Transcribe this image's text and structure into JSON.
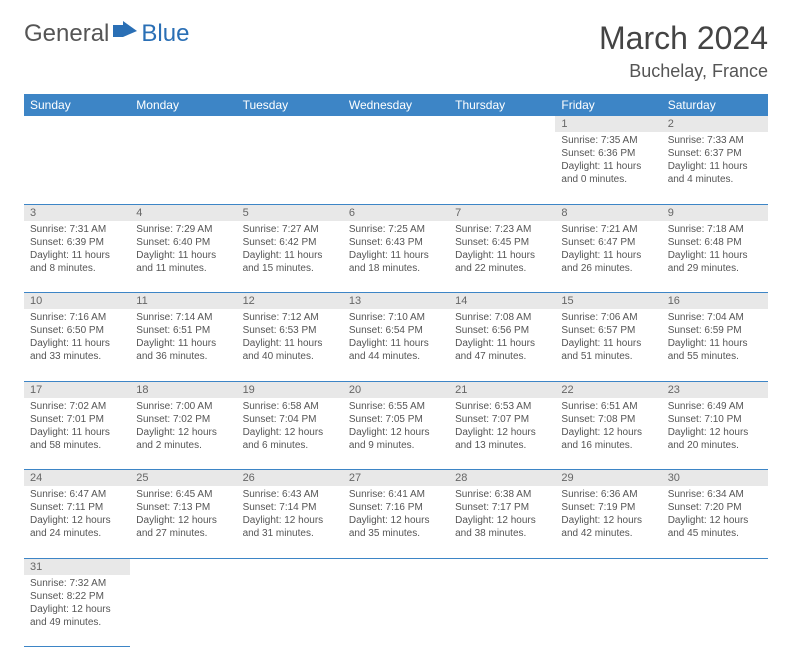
{
  "logo": {
    "part1": "General",
    "part2": "Blue"
  },
  "title": "March 2024",
  "location": "Buchelay, France",
  "colors": {
    "header_bg": "#3d85c6",
    "header_text": "#ffffff",
    "daynum_bg": "#e8e8e8",
    "border": "#3d85c6",
    "text": "#555555",
    "logo_blue": "#2a6fb5"
  },
  "day_headers": [
    "Sunday",
    "Monday",
    "Tuesday",
    "Wednesday",
    "Thursday",
    "Friday",
    "Saturday"
  ],
  "weeks": [
    [
      null,
      null,
      null,
      null,
      null,
      {
        "n": "1",
        "sr": "7:35 AM",
        "ss": "6:36 PM",
        "dl": "11 hours and 0 minutes."
      },
      {
        "n": "2",
        "sr": "7:33 AM",
        "ss": "6:37 PM",
        "dl": "11 hours and 4 minutes."
      }
    ],
    [
      {
        "n": "3",
        "sr": "7:31 AM",
        "ss": "6:39 PM",
        "dl": "11 hours and 8 minutes."
      },
      {
        "n": "4",
        "sr": "7:29 AM",
        "ss": "6:40 PM",
        "dl": "11 hours and 11 minutes."
      },
      {
        "n": "5",
        "sr": "7:27 AM",
        "ss": "6:42 PM",
        "dl": "11 hours and 15 minutes."
      },
      {
        "n": "6",
        "sr": "7:25 AM",
        "ss": "6:43 PM",
        "dl": "11 hours and 18 minutes."
      },
      {
        "n": "7",
        "sr": "7:23 AM",
        "ss": "6:45 PM",
        "dl": "11 hours and 22 minutes."
      },
      {
        "n": "8",
        "sr": "7:21 AM",
        "ss": "6:47 PM",
        "dl": "11 hours and 26 minutes."
      },
      {
        "n": "9",
        "sr": "7:18 AM",
        "ss": "6:48 PM",
        "dl": "11 hours and 29 minutes."
      }
    ],
    [
      {
        "n": "10",
        "sr": "7:16 AM",
        "ss": "6:50 PM",
        "dl": "11 hours and 33 minutes."
      },
      {
        "n": "11",
        "sr": "7:14 AM",
        "ss": "6:51 PM",
        "dl": "11 hours and 36 minutes."
      },
      {
        "n": "12",
        "sr": "7:12 AM",
        "ss": "6:53 PM",
        "dl": "11 hours and 40 minutes."
      },
      {
        "n": "13",
        "sr": "7:10 AM",
        "ss": "6:54 PM",
        "dl": "11 hours and 44 minutes."
      },
      {
        "n": "14",
        "sr": "7:08 AM",
        "ss": "6:56 PM",
        "dl": "11 hours and 47 minutes."
      },
      {
        "n": "15",
        "sr": "7:06 AM",
        "ss": "6:57 PM",
        "dl": "11 hours and 51 minutes."
      },
      {
        "n": "16",
        "sr": "7:04 AM",
        "ss": "6:59 PM",
        "dl": "11 hours and 55 minutes."
      }
    ],
    [
      {
        "n": "17",
        "sr": "7:02 AM",
        "ss": "7:01 PM",
        "dl": "11 hours and 58 minutes."
      },
      {
        "n": "18",
        "sr": "7:00 AM",
        "ss": "7:02 PM",
        "dl": "12 hours and 2 minutes."
      },
      {
        "n": "19",
        "sr": "6:58 AM",
        "ss": "7:04 PM",
        "dl": "12 hours and 6 minutes."
      },
      {
        "n": "20",
        "sr": "6:55 AM",
        "ss": "7:05 PM",
        "dl": "12 hours and 9 minutes."
      },
      {
        "n": "21",
        "sr": "6:53 AM",
        "ss": "7:07 PM",
        "dl": "12 hours and 13 minutes."
      },
      {
        "n": "22",
        "sr": "6:51 AM",
        "ss": "7:08 PM",
        "dl": "12 hours and 16 minutes."
      },
      {
        "n": "23",
        "sr": "6:49 AM",
        "ss": "7:10 PM",
        "dl": "12 hours and 20 minutes."
      }
    ],
    [
      {
        "n": "24",
        "sr": "6:47 AM",
        "ss": "7:11 PM",
        "dl": "12 hours and 24 minutes."
      },
      {
        "n": "25",
        "sr": "6:45 AM",
        "ss": "7:13 PM",
        "dl": "12 hours and 27 minutes."
      },
      {
        "n": "26",
        "sr": "6:43 AM",
        "ss": "7:14 PM",
        "dl": "12 hours and 31 minutes."
      },
      {
        "n": "27",
        "sr": "6:41 AM",
        "ss": "7:16 PM",
        "dl": "12 hours and 35 minutes."
      },
      {
        "n": "28",
        "sr": "6:38 AM",
        "ss": "7:17 PM",
        "dl": "12 hours and 38 minutes."
      },
      {
        "n": "29",
        "sr": "6:36 AM",
        "ss": "7:19 PM",
        "dl": "12 hours and 42 minutes."
      },
      {
        "n": "30",
        "sr": "6:34 AM",
        "ss": "7:20 PM",
        "dl": "12 hours and 45 minutes."
      }
    ],
    [
      {
        "n": "31",
        "sr": "7:32 AM",
        "ss": "8:22 PM",
        "dl": "12 hours and 49 minutes."
      },
      null,
      null,
      null,
      null,
      null,
      null
    ]
  ],
  "labels": {
    "sunrise": "Sunrise: ",
    "sunset": "Sunset: ",
    "daylight": "Daylight: "
  }
}
